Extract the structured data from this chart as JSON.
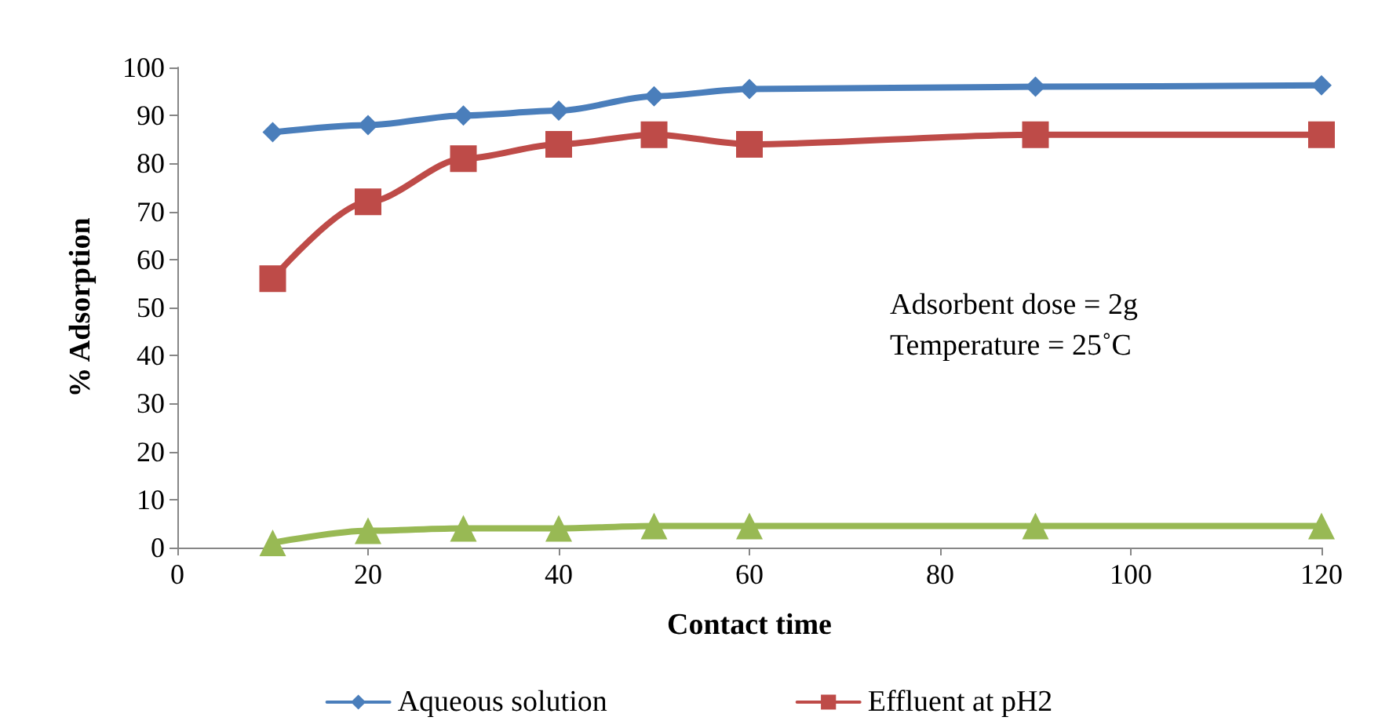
{
  "chart_data": {
    "type": "line",
    "xlabel": "Contact time",
    "ylabel": "% Adsorption",
    "x": [
      10,
      20,
      30,
      40,
      50,
      60,
      90,
      120
    ],
    "series": [
      {
        "name": "Aqueous solution",
        "color": "#4a7ebb",
        "marker": "diamond",
        "values": [
          86.5,
          88,
          90,
          91,
          94,
          95.5,
          96,
          96.3
        ]
      },
      {
        "name": "Effluent at pH2",
        "color": "#be4b48",
        "marker": "square",
        "values": [
          56,
          72,
          81,
          84,
          86,
          84,
          86,
          86
        ]
      },
      {
        "color": "#98b954",
        "marker": "triangle",
        "values": [
          1,
          3.5,
          4,
          4,
          4.5,
          4.5,
          4.5,
          4.5
        ]
      }
    ],
    "xlim": [
      0,
      120
    ],
    "xticks": [
      0,
      20,
      40,
      60,
      80,
      100,
      120
    ],
    "ylim": [
      0,
      100
    ],
    "yticks": [
      0,
      10,
      20,
      30,
      40,
      50,
      60,
      70,
      80,
      90,
      100
    ],
    "grid": false,
    "legend": "bottom",
    "annotations": [
      "Adsorbent dose = 2g",
      "Temperature = 25˚C"
    ]
  }
}
